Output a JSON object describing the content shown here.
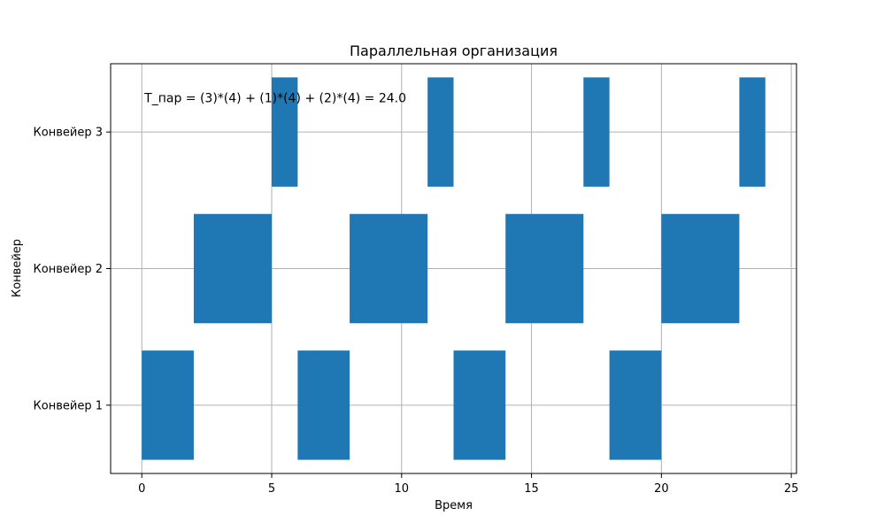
{
  "chart_data": {
    "type": "gantt",
    "title": "Параллельная организация",
    "xlabel": "Время",
    "ylabel": "Конвейер",
    "xlim": [
      -1.2,
      25.2
    ],
    "ylim": [
      0.5,
      3.5
    ],
    "xticks": [
      0,
      5,
      10,
      15,
      20,
      25
    ],
    "yticks": [
      {
        "value": 1,
        "label": "Конвейер 1"
      },
      {
        "value": 2,
        "label": "Конвейер 2"
      },
      {
        "value": 3,
        "label": "Конвейер 3"
      }
    ],
    "grid": true,
    "bar_color": "#1f77b4",
    "annotation": {
      "text": "T_пар = (3)*(4) + (1)*(4) + (2)*(4) = 24.0",
      "x": 0.1,
      "y": 3.25
    },
    "series": [
      {
        "row": 1,
        "segments": [
          [
            0,
            2
          ],
          [
            6,
            8
          ],
          [
            12,
            14
          ],
          [
            18,
            20
          ]
        ]
      },
      {
        "row": 2,
        "segments": [
          [
            2,
            5
          ],
          [
            8,
            11
          ],
          [
            14,
            17
          ],
          [
            20,
            23
          ]
        ]
      },
      {
        "row": 3,
        "segments": [
          [
            5,
            6
          ],
          [
            11,
            12
          ],
          [
            17,
            18
          ],
          [
            23,
            24
          ]
        ]
      }
    ]
  }
}
